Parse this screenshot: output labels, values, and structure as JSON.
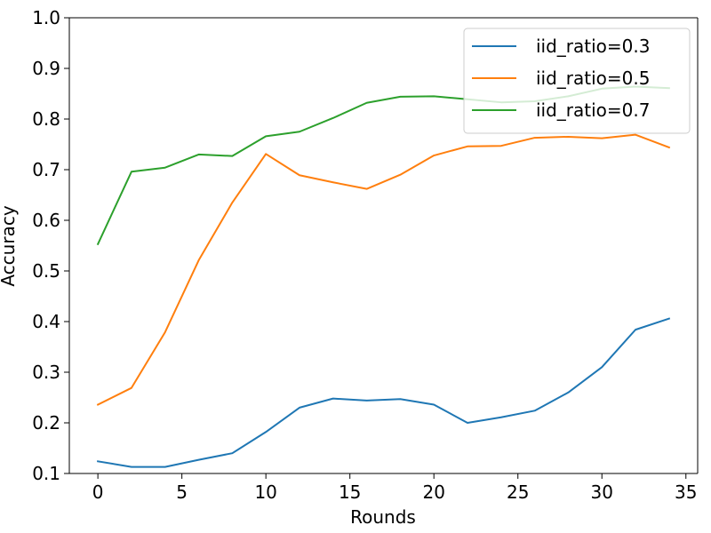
{
  "chart_data": {
    "type": "line",
    "title": "",
    "xlabel": "Rounds",
    "ylabel": "Accuracy",
    "xlim": [
      -1.7,
      35.7
    ],
    "ylim": [
      0.1,
      1.0
    ],
    "xticks": [
      0,
      5,
      10,
      15,
      20,
      25,
      30,
      35
    ],
    "yticks": [
      0.1,
      0.2,
      0.3,
      0.4,
      0.5,
      0.6,
      0.7,
      0.8,
      0.9,
      1.0
    ],
    "legend_position": "top-right",
    "grid": false,
    "x": [
      0,
      2,
      4,
      6,
      8,
      10,
      12,
      14,
      16,
      18,
      20,
      22,
      24,
      26,
      28,
      30,
      32,
      34
    ],
    "series": [
      {
        "name": "iid_ratio=0.3",
        "color": "#1f77b4",
        "values": [
          0.124,
          0.113,
          0.113,
          0.127,
          0.14,
          0.182,
          0.23,
          0.248,
          0.244,
          0.247,
          0.236,
          0.2,
          0.211,
          0.224,
          0.26,
          0.31,
          0.384,
          0.406
        ]
      },
      {
        "name": "iid_ratio=0.5",
        "color": "#ff7f0e",
        "values": [
          0.236,
          0.269,
          0.379,
          0.521,
          0.635,
          0.731,
          0.689,
          0.675,
          0.662,
          0.69,
          0.728,
          0.746,
          0.747,
          0.763,
          0.765,
          0.762,
          0.769,
          0.744
        ]
      },
      {
        "name": "iid_ratio=0.7",
        "color": "#2ca02c",
        "values": [
          0.553,
          0.696,
          0.704,
          0.73,
          0.727,
          0.766,
          0.775,
          0.802,
          0.832,
          0.844,
          0.845,
          0.839,
          0.833,
          0.835,
          0.845,
          0.86,
          0.864,
          0.861
        ]
      }
    ]
  }
}
